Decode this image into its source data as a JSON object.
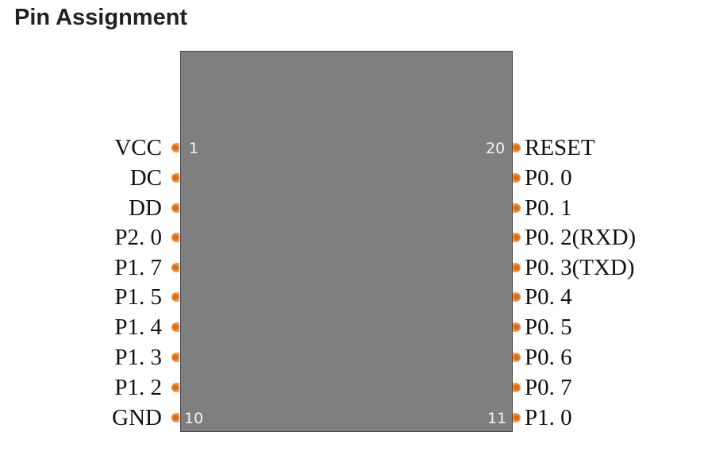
{
  "title": "Pin Assignment",
  "chip": {
    "pin_numbers": {
      "top_left": "1",
      "top_right": "20",
      "bottom_left": "10",
      "bottom_right": "11"
    }
  },
  "left_pins": [
    "VCC",
    "DC",
    "DD",
    "P2. 0",
    "P1. 7",
    "P1. 5",
    "P1. 4",
    "P1. 3",
    "P1. 2",
    "GND"
  ],
  "right_pins": [
    "RESET",
    "P0. 0",
    "P0. 1",
    "P0. 2(RXD)",
    "P0. 3(TXD)",
    "P0. 4",
    "P0. 5",
    "P0. 6",
    "P0. 7",
    "P1. 0"
  ],
  "colors": {
    "chip": "#7f7f7f",
    "pin": "#e06a10"
  }
}
